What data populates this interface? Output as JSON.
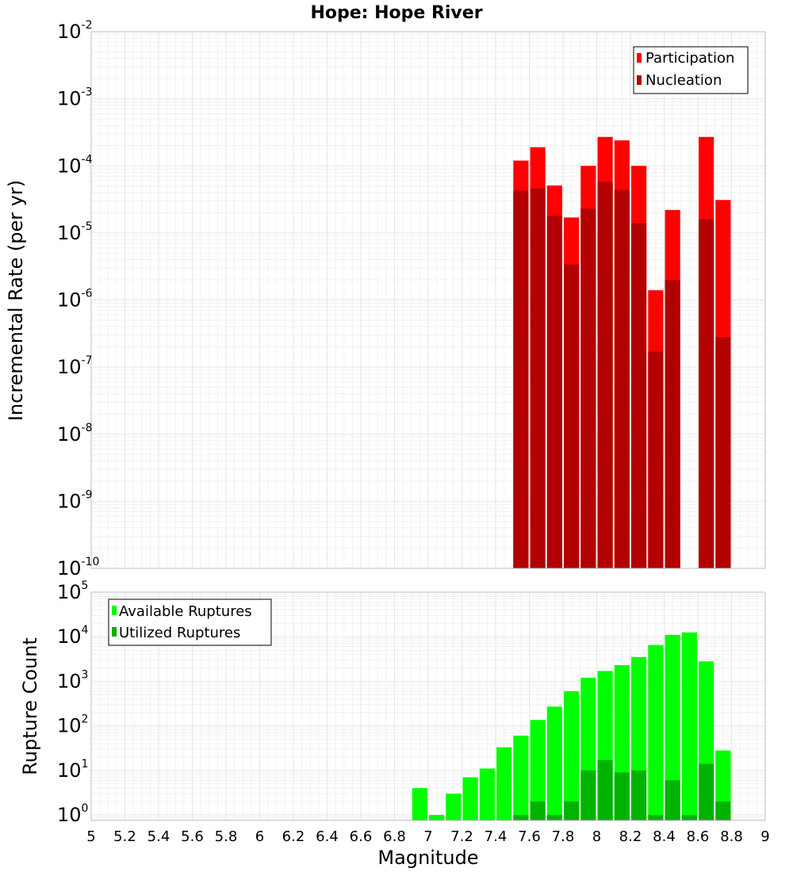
{
  "chart_data": [
    {
      "type": "bar",
      "title": "Hope: Hope River",
      "xlabel": "",
      "ylabel": "Incremental Rate (per yr)",
      "yscale": "log",
      "ylim": [
        1e-10,
        0.01
      ],
      "xlim": [
        5,
        9
      ],
      "y_tick_exponents": [
        -10,
        -9,
        -8,
        -7,
        -6,
        -5,
        -4,
        -3,
        -2
      ],
      "x": [
        7.55,
        7.65,
        7.75,
        7.85,
        7.95,
        8.05,
        8.15,
        8.25,
        8.35,
        8.45,
        8.65,
        8.75
      ],
      "series": [
        {
          "name": "Participation",
          "color": "#ff0000",
          "values": [
            0.00012,
            0.00019,
            5.1e-05,
            1.7e-05,
            0.0001,
            0.00027,
            0.00024,
            0.0001,
            1.4e-06,
            2.2e-05,
            0.00027,
            3.1e-05
          ]
        },
        {
          "name": "Nucleation",
          "color": "#b20000",
          "values": [
            4.3e-05,
            4.6e-05,
            1.8e-05,
            3.4e-06,
            2.3e-05,
            5.8e-05,
            4.4e-05,
            1.4e-05,
            1.7e-07,
            2e-06,
            1.6e-05,
            2.8e-07
          ]
        }
      ],
      "legend_position": "top-right",
      "grid": true
    },
    {
      "type": "bar",
      "title": "",
      "xlabel": "Magnitude",
      "ylabel": "Rupture Count",
      "yscale": "log",
      "ylim": [
        0.75,
        100000
      ],
      "xlim": [
        5,
        9
      ],
      "y_tick_exponents": [
        0,
        1,
        2,
        3,
        4,
        5
      ],
      "x_ticks": [
        "5",
        "5.2",
        "5.4",
        "5.6",
        "5.8",
        "6",
        "6.2",
        "6.4",
        "6.6",
        "6.8",
        "7",
        "7.2",
        "7.4",
        "7.6",
        "7.8",
        "8",
        "8.2",
        "8.4",
        "8.6",
        "8.8",
        "9"
      ],
      "x": [
        6.95,
        7.05,
        7.15,
        7.25,
        7.35,
        7.45,
        7.55,
        7.65,
        7.75,
        7.85,
        7.95,
        8.05,
        8.15,
        8.25,
        8.35,
        8.45,
        8.55,
        8.65,
        8.75
      ],
      "series": [
        {
          "name": "Available Ruptures",
          "color": "#00ff00",
          "values": [
            4,
            1,
            3,
            7,
            11,
            33,
            60,
            135,
            270,
            600,
            1200,
            1700,
            2300,
            3500,
            6500,
            11000,
            12500,
            2800,
            28
          ]
        },
        {
          "name": "Utilized Ruptures",
          "color": "#00b200",
          "values": [
            null,
            null,
            null,
            null,
            null,
            null,
            1,
            2,
            1,
            2,
            10,
            17,
            9,
            10,
            1,
            6,
            1,
            14,
            2
          ]
        }
      ],
      "legend_position": "top-left",
      "grid": true
    }
  ]
}
